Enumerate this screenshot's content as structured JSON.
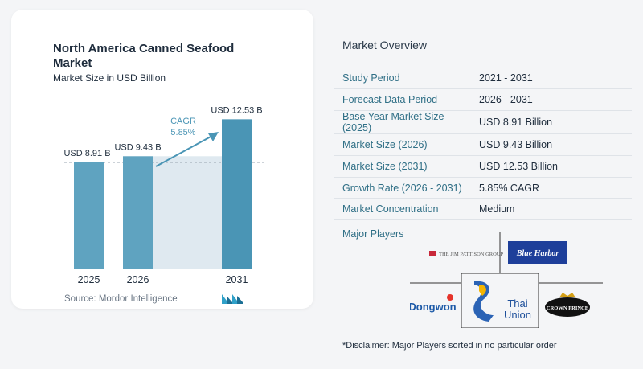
{
  "left_card": {
    "title": "North America Canned Seafood Market",
    "subtitle": "Market Size in USD Billion",
    "source": "Source:  Mordor Intelligence"
  },
  "chart_data": {
    "type": "bar",
    "categories": [
      "2025",
      "2026",
      "2031"
    ],
    "values": [
      8.91,
      9.43,
      12.53
    ],
    "value_labels": [
      "USD 8.91 B",
      "USD 9.43 B",
      "USD 12.53 B"
    ],
    "cagr_label": "CAGR",
    "cagr_value": "5.85%",
    "ylim": [
      0,
      13.5
    ],
    "reference_line_value": 8.91,
    "colors": {
      "bar": "#5fa3c0",
      "bar_highlight": "#4a95b5",
      "area": "#dfe9f0",
      "arrow": "#4a95b5",
      "cagr_text": "#4a95b5"
    }
  },
  "overview": {
    "title": "Market Overview",
    "rows": [
      {
        "label": "Study Period",
        "value": "2021 - 2031"
      },
      {
        "label": "Forecast Data Period",
        "value": "2026 - 2031"
      },
      {
        "label": "Base Year Market Size (2025)",
        "value": "USD 8.91 Billion"
      },
      {
        "label": "Market Size (2026)",
        "value": "USD 9.43 Billion"
      },
      {
        "label": "Market Size (2031)",
        "value": "USD 12.53 Billion"
      },
      {
        "label": "Growth Rate (2026 - 2031)",
        "value": "5.85% CAGR"
      },
      {
        "label": "Market Concentration",
        "value": "Medium"
      }
    ]
  },
  "players": {
    "title": "Major Players",
    "logos": [
      {
        "name": "jim-pattison-logo",
        "text": "THE JIM PATTISON GROUP"
      },
      {
        "name": "blue-harbor-logo",
        "text": "Blue Harbor"
      },
      {
        "name": "dongwon-logo",
        "text": "Dongwon"
      },
      {
        "name": "thai-union-logo",
        "text_line1": "Thai",
        "text_line2": "Union"
      },
      {
        "name": "crown-prince-logo",
        "text": "CROWN PRINCE"
      }
    ]
  },
  "disclaimer": "*Disclaimer: Major Players sorted in no particular order"
}
